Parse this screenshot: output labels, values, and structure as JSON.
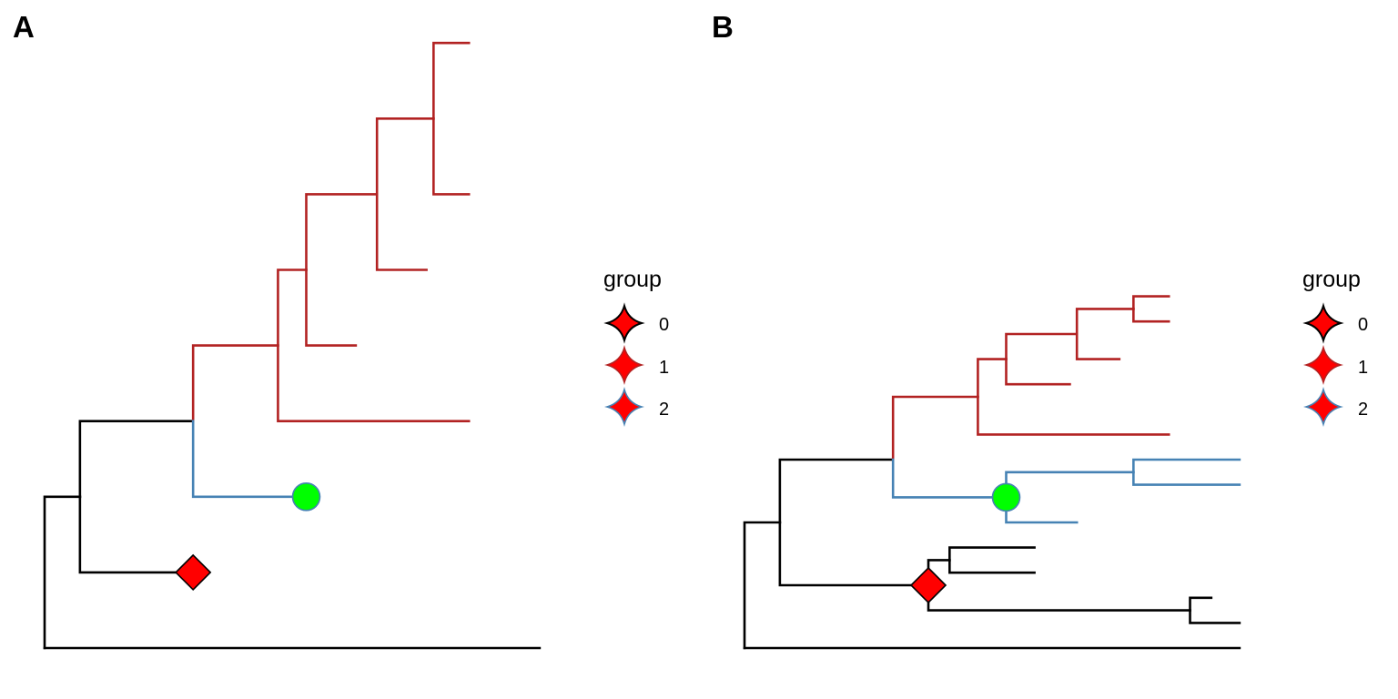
{
  "colors": {
    "group0": "#000000",
    "group1": "#B22222",
    "group2": "#4682B4",
    "diamond_fill": "#FF0000",
    "circle_fill": "#00FF00"
  },
  "panels": [
    {
      "label": "A",
      "legend": {
        "title": "group",
        "items": [
          {
            "label": "0",
            "group": 0
          },
          {
            "label": "1",
            "group": 1
          },
          {
            "label": "2",
            "group": 2
          }
        ]
      },
      "nodes": [
        {
          "id": "root",
          "x": 0.0,
          "y": 0.0
        },
        {
          "id": "a1",
          "parent": "root",
          "x": 0.5,
          "y": 2.0,
          "group": 0
        },
        {
          "id": "t_bottom",
          "parent": "root",
          "x": 7.0,
          "y": 0.0,
          "group": 0
        },
        {
          "id": "a2",
          "parent": "a1",
          "x": 2.1,
          "y": 3.0,
          "group": 0
        },
        {
          "id": "t_diamond",
          "parent": "a1",
          "x": 2.1,
          "y": 1.0,
          "group": 0,
          "marker": "diamond"
        },
        {
          "id": "a3",
          "parent": "a2",
          "x": 3.3,
          "y": 4.0,
          "group": 1
        },
        {
          "id": "t_circle",
          "parent": "a2",
          "x": 3.7,
          "y": 2.0,
          "group": 2,
          "marker": "circle"
        },
        {
          "id": "a4",
          "parent": "a3",
          "x": 3.7,
          "y": 5.0,
          "group": 1
        },
        {
          "id": "t_long",
          "parent": "a3",
          "x": 6.0,
          "y": 3.0,
          "group": 1
        },
        {
          "id": "a5",
          "parent": "a4",
          "x": 4.7,
          "y": 6.0,
          "group": 1
        },
        {
          "id": "t_mid",
          "parent": "a4",
          "x": 4.4,
          "y": 4.0,
          "group": 1
        },
        {
          "id": "a6",
          "parent": "a5",
          "x": 5.5,
          "y": 7.0,
          "group": 1
        },
        {
          "id": "t_short",
          "parent": "a5",
          "x": 5.4,
          "y": 5.0,
          "group": 1
        },
        {
          "id": "t_top2",
          "parent": "a6",
          "x": 6.0,
          "y": 6.0,
          "group": 1
        },
        {
          "id": "t_top1",
          "parent": "a6",
          "x": 6.0,
          "y": 8.0,
          "group": 1
        }
      ]
    },
    {
      "label": "B",
      "legend": {
        "title": "group",
        "items": [
          {
            "label": "0",
            "group": 0
          },
          {
            "label": "1",
            "group": 1
          },
          {
            "label": "2",
            "group": 2
          }
        ]
      },
      "nodes": [
        {
          "id": "root",
          "x": 0.0,
          "y": 0.0
        },
        {
          "id": "b1",
          "parent": "root",
          "x": 0.5,
          "y": 5.0,
          "group": 0
        },
        {
          "id": "t_bottom",
          "parent": "root",
          "x": 7.0,
          "y": 0.0,
          "group": 0
        },
        {
          "id": "b2",
          "parent": "b1",
          "x": 2.1,
          "y": 7.5,
          "group": 0
        },
        {
          "id": "b3",
          "parent": "b1",
          "x": 2.6,
          "y": 2.5,
          "group": 0,
          "marker": "diamond"
        },
        {
          "id": "b4",
          "parent": "b2",
          "x": 3.3,
          "y": 10.0,
          "group": 1
        },
        {
          "id": "b5",
          "parent": "b2",
          "x": 3.7,
          "y": 6.0,
          "group": 2,
          "marker": "circle"
        },
        {
          "id": "b6",
          "parent": "b4",
          "x": 3.7,
          "y": 11.5,
          "group": 1
        },
        {
          "id": "t_b4",
          "parent": "b4",
          "x": 6.0,
          "y": 8.5,
          "group": 1
        },
        {
          "id": "b7",
          "parent": "b6",
          "x": 4.7,
          "y": 12.5,
          "group": 1
        },
        {
          "id": "t_b6",
          "parent": "b6",
          "x": 4.6,
          "y": 10.5,
          "group": 1
        },
        {
          "id": "b8",
          "parent": "b7",
          "x": 5.5,
          "y": 13.5,
          "group": 1
        },
        {
          "id": "t_b7",
          "parent": "b7",
          "x": 5.3,
          "y": 11.5,
          "group": 1
        },
        {
          "id": "t_b8a",
          "parent": "b8",
          "x": 6.0,
          "y": 14.0,
          "group": 1
        },
        {
          "id": "t_b8b",
          "parent": "b8",
          "x": 6.0,
          "y": 13.0,
          "group": 1
        },
        {
          "id": "b9",
          "parent": "b5",
          "x": 5.5,
          "y": 7.0,
          "group": 2
        },
        {
          "id": "t_b5",
          "parent": "b5",
          "x": 4.7,
          "y": 5.0,
          "group": 2
        },
        {
          "id": "t_b9a",
          "parent": "b9",
          "x": 7.0,
          "y": 7.5,
          "group": 2
        },
        {
          "id": "t_b9b",
          "parent": "b9",
          "x": 7.0,
          "y": 6.5,
          "group": 2
        },
        {
          "id": "b10",
          "parent": "b3",
          "x": 2.9,
          "y": 3.5,
          "group": 0
        },
        {
          "id": "b11",
          "parent": "b3",
          "x": 6.3,
          "y": 1.5,
          "group": 0
        },
        {
          "id": "t_b10a",
          "parent": "b10",
          "x": 4.1,
          "y": 4.0,
          "group": 0
        },
        {
          "id": "t_b10b",
          "parent": "b10",
          "x": 4.1,
          "y": 3.0,
          "group": 0
        },
        {
          "id": "t_b11a",
          "parent": "b11",
          "x": 6.6,
          "y": 2.0,
          "group": 0
        },
        {
          "id": "t_b11b",
          "parent": "b11",
          "x": 7.0,
          "y": 1.0,
          "group": 0
        }
      ]
    }
  ]
}
